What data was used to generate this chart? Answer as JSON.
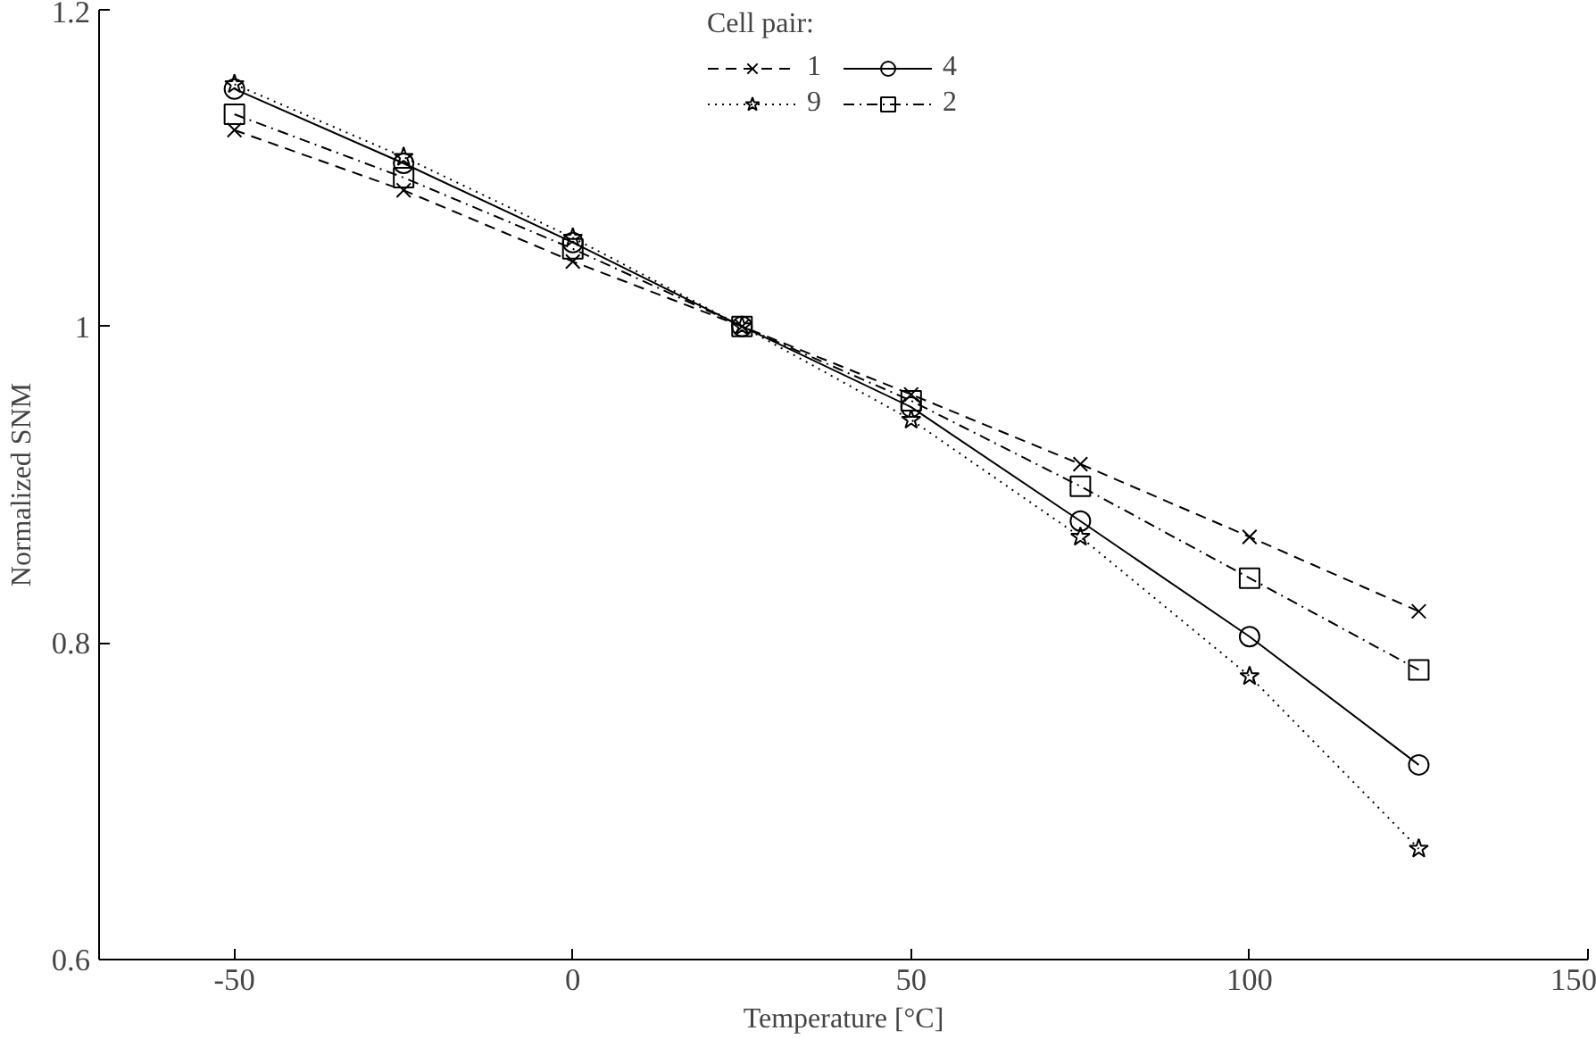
{
  "chart_data": {
    "type": "line",
    "xlabel": "Temperature [°C]",
    "ylabel": "Normalized SNM",
    "legend_title": "Cell pair:",
    "x": [
      -50,
      -25,
      0,
      25,
      50,
      75,
      100,
      125
    ],
    "series": [
      {
        "name": "1",
        "color": "#000000",
        "marker": "cross",
        "line_style": "dashed",
        "values": [
          1.124,
          1.086,
          1.041,
          1.0,
          0.957,
          0.913,
          0.867,
          0.82
        ]
      },
      {
        "name": "4",
        "color": "#000000",
        "marker": "circle",
        "line_style": "solid",
        "values": [
          1.15,
          1.103,
          1.053,
          1.0,
          0.949,
          0.877,
          0.804,
          0.723
        ]
      },
      {
        "name": "9",
        "color": "#000000",
        "marker": "star",
        "line_style": "dotted",
        "values": [
          1.153,
          1.107,
          1.056,
          1.0,
          0.941,
          0.867,
          0.779,
          0.67
        ]
      },
      {
        "name": "2",
        "color": "#000000",
        "marker": "square",
        "line_style": "dashdot",
        "values": [
          1.134,
          1.094,
          1.049,
          1.0,
          0.953,
          0.899,
          0.841,
          0.783
        ]
      }
    ],
    "xlim": [
      -70,
      150
    ],
    "xticks": [
      -50,
      0,
      50,
      100,
      150
    ],
    "ylim": [
      0.6,
      1.2
    ],
    "yticks": [
      0.6,
      0.8,
      1,
      1.2
    ],
    "grid": false,
    "legend": "top"
  }
}
